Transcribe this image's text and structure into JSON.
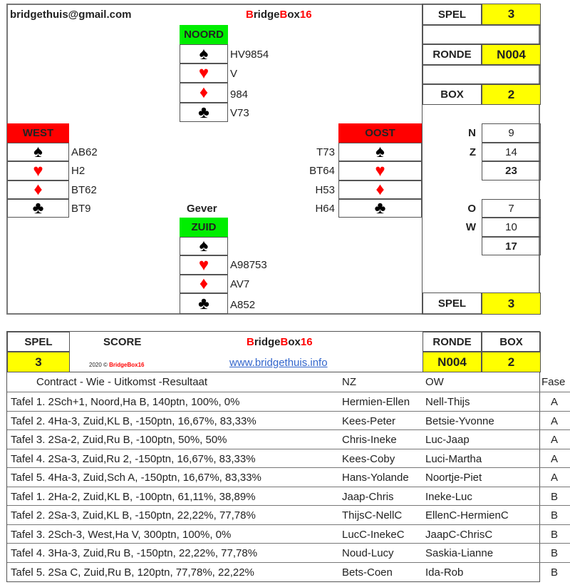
{
  "header": {
    "email": "bridgethuis@gmail.com",
    "brand": {
      "b1": "B",
      "ridge": "ridge",
      "b2": "B",
      "ox": "ox",
      "n": "16"
    }
  },
  "side": {
    "spel_label": "SPEL",
    "spel": "3",
    "ronde_label": "RONDE",
    "ronde": "N004",
    "box_label": "BOX",
    "box": "2",
    "n_label": "N",
    "n": "9",
    "z_label": "Z",
    "z": "14",
    "nz_total": "23",
    "o_label": "O",
    "o": "7",
    "w_label": "W",
    "w": "10",
    "ow_total": "17",
    "spel2_label": "SPEL",
    "spel2": "3"
  },
  "suits": {
    "spade": "♠",
    "heart": "♥",
    "diamond": "♦",
    "club": "♣"
  },
  "hands": {
    "noord": {
      "label": "NOORD",
      "s": "HV9854",
      "h": "V",
      "d": "984",
      "c": "V73"
    },
    "west": {
      "label": "WEST",
      "s": "AB62",
      "h": "H2",
      "d": "BT62",
      "c": "BT9"
    },
    "oost": {
      "label": "OOST",
      "s": "T73",
      "h": "BT64",
      "d": "H53",
      "c": "H64"
    },
    "zuid": {
      "label": "ZUID",
      "s": "",
      "h": "A98753",
      "d": "AV7",
      "c": "A852"
    }
  },
  "dealer_label": "Gever",
  "score": {
    "spel_label": "SPEL",
    "spel": "3",
    "score_label": "SCORE",
    "ronde_label": "RONDE",
    "ronde": "N004",
    "box_label": "BOX",
    "box": "2",
    "copyright": "2020 © ",
    "copy_brand": "BridgeBox16",
    "link": "www.bridgethuis.info",
    "col_contract": "Contract - Wie - Uitkomst -Resultaat",
    "col_nz": "NZ",
    "col_ow": "OW",
    "col_fase": "Fase",
    "rows": [
      {
        "c": "Tafel 1. 2Sch+1, Noord,Ha B, 140ptn, 100%, 0%",
        "nz": "Hermien-Ellen",
        "ow": "Nell-Thijs",
        "f": "A"
      },
      {
        "c": "Tafel 2. 4Ha-3, Zuid,KL B, -150ptn, 16,67%, 83,33%",
        "nz": "Kees-Peter",
        "ow": "Betsie-Yvonne",
        "f": "A"
      },
      {
        "c": "Tafel 3. 2Sa-2, Zuid,Ru B, -100ptn, 50%, 50%",
        "nz": "Chris-Ineke",
        "ow": "Luc-Jaap",
        "f": "A"
      },
      {
        "c": "Tafel 4. 2Sa-3, Zuid,Ru 2, -150ptn, 16,67%, 83,33%",
        "nz": "Kees-Coby",
        "ow": "Luci-Martha",
        "f": "A"
      },
      {
        "c": "Tafel 5. 4Ha-3, Zuid,Sch A, -150ptn, 16,67%, 83,33%",
        "nz": "Hans-Yolande",
        "ow": "Noortje-Piet",
        "f": "A"
      },
      {
        "c": "Tafel 1. 2Ha-2, Zuid,KL B, -100ptn, 61,11%, 38,89%",
        "nz": "Jaap-Chris",
        "ow": "Ineke-Luc",
        "f": "B"
      },
      {
        "c": "Tafel 2. 2Sa-3, Zuid,KL B, -150ptn, 22,22%, 77,78%",
        "nz": "ThijsC-NellC",
        "ow": "EllenC-HermienC",
        "f": "B"
      },
      {
        "c": "Tafel 3. 2Sch-3, West,Ha V, 300ptn, 100%, 0%",
        "nz": "LucC-InekeC",
        "ow": "JaapC-ChrisC",
        "f": "B"
      },
      {
        "c": "Tafel 4. 3Ha-3, Zuid,Ru B, -150ptn, 22,22%, 77,78%",
        "nz": "Noud-Lucy",
        "ow": "Saskia-Lianne",
        "f": "B"
      },
      {
        "c": "Tafel 5. 2Sa C, Zuid,Ru B, 120ptn, 77,78%, 22,22%",
        "nz": "Bets-Coen",
        "ow": "Ida-Rob",
        "f": "B"
      }
    ]
  }
}
